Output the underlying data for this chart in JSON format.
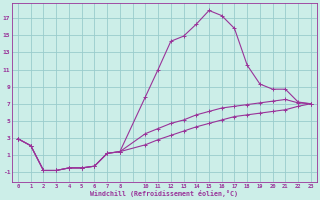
{
  "bg_color": "#cceee8",
  "line_color": "#993399",
  "grid_color": "#99cccc",
  "xlabel": "Windchill (Refroidissement éolien,°C)",
  "ylabel_ticks": [
    -1,
    1,
    3,
    5,
    7,
    9,
    11,
    13,
    15,
    17
  ],
  "xlim": [
    -0.5,
    23.5
  ],
  "ylim": [
    -2.2,
    18.8
  ],
  "series1_x": [
    0,
    1,
    2,
    3,
    4,
    5,
    6,
    7,
    8,
    10,
    11,
    12,
    13,
    14,
    15,
    16,
    17,
    18,
    19,
    20,
    21,
    22,
    23
  ],
  "series1_y": [
    2.9,
    2.1,
    -0.8,
    -0.8,
    -0.5,
    -0.5,
    -0.3,
    1.2,
    1.4,
    7.8,
    11.0,
    14.3,
    14.9,
    16.3,
    17.9,
    17.3,
    15.8,
    11.5,
    9.3,
    8.7,
    8.7,
    7.2,
    7.0
  ],
  "series2_x": [
    0,
    1,
    2,
    3,
    4,
    5,
    6,
    7,
    8,
    10,
    11,
    12,
    13,
    14,
    15,
    16,
    17,
    18,
    19,
    20,
    21,
    22,
    23
  ],
  "series2_y": [
    2.9,
    2.1,
    -0.8,
    -0.8,
    -0.5,
    -0.5,
    -0.3,
    1.2,
    1.4,
    3.5,
    4.1,
    4.7,
    5.1,
    5.7,
    6.1,
    6.5,
    6.7,
    6.9,
    7.1,
    7.3,
    7.5,
    7.1,
    7.0
  ],
  "series3_x": [
    0,
    1,
    2,
    3,
    4,
    5,
    6,
    7,
    8,
    10,
    11,
    12,
    13,
    14,
    15,
    16,
    17,
    18,
    19,
    20,
    21,
    22,
    23
  ],
  "series3_y": [
    2.9,
    2.1,
    -0.8,
    -0.8,
    -0.5,
    -0.5,
    -0.3,
    1.2,
    1.4,
    2.2,
    2.8,
    3.3,
    3.8,
    4.3,
    4.7,
    5.1,
    5.5,
    5.7,
    5.9,
    6.1,
    6.3,
    6.7,
    7.0
  ],
  "xtick_labels": [
    "0",
    "1",
    "2",
    "3",
    "4",
    "5",
    "6",
    "7",
    "8",
    "",
    "10",
    "11",
    "12",
    "13",
    "14",
    "15",
    "16",
    "17",
    "18",
    "19",
    "20",
    "21",
    "22",
    "23"
  ]
}
